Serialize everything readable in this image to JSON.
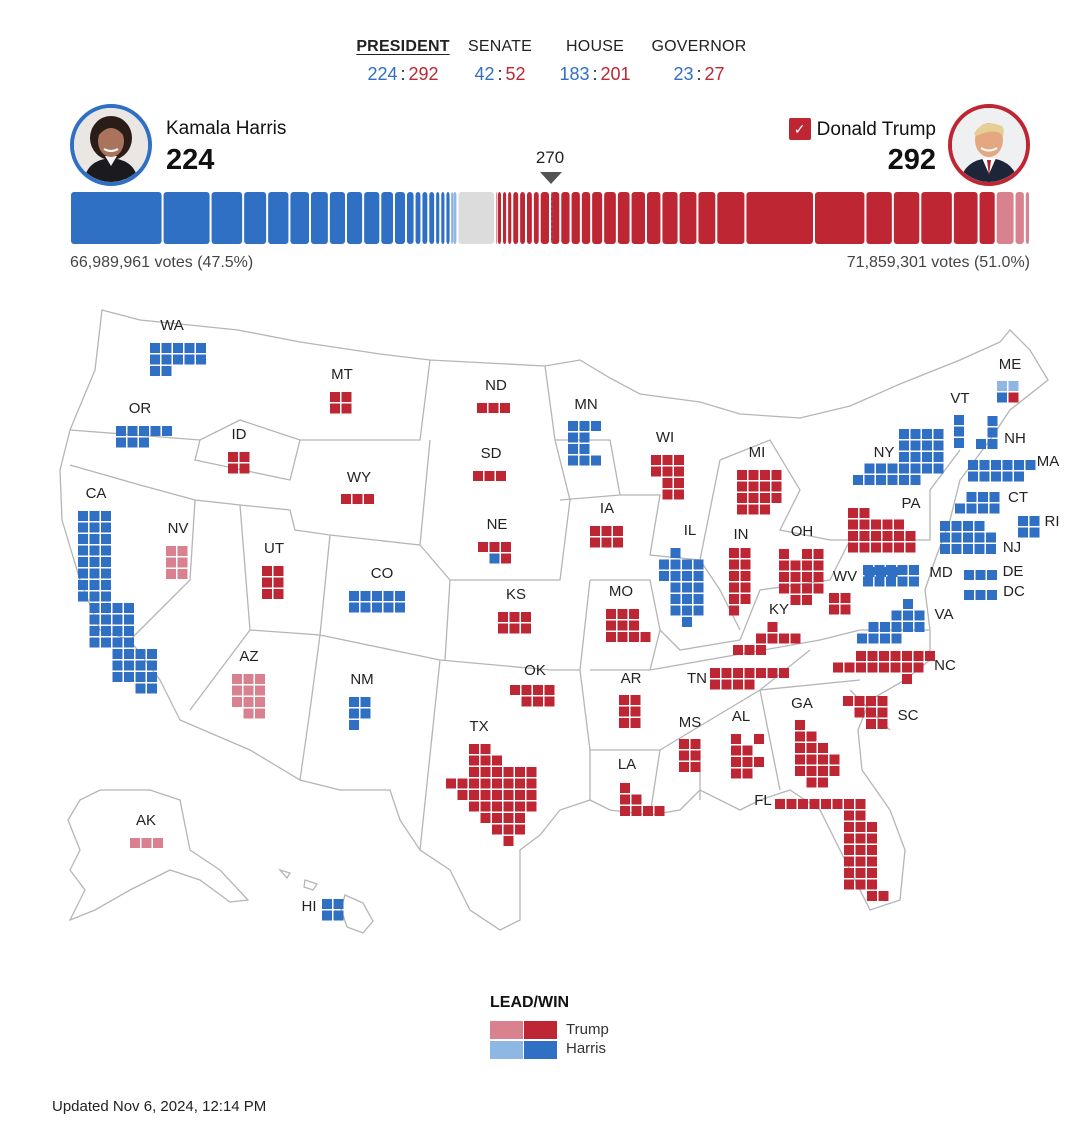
{
  "tabs": [
    {
      "label": "PRESIDENT",
      "dem": "224",
      "rep": "292",
      "active": true
    },
    {
      "label": "SENATE",
      "dem": "42",
      "rep": "52",
      "active": false
    },
    {
      "label": "HOUSE",
      "dem": "183",
      "rep": "201",
      "active": false
    },
    {
      "label": "GOVERNOR",
      "dem": "23",
      "rep": "27",
      "active": false
    }
  ],
  "candidates": {
    "dem": {
      "name": "Kamala Harris",
      "ev": "224",
      "votes": "66,989,961 votes (47.5%)",
      "color": "#2f6fc4"
    },
    "rep": {
      "name": "Donald Trump",
      "ev": "292",
      "votes": "71,859,301 votes (51.0%)",
      "color": "#bf2633",
      "check": "✓"
    }
  },
  "threshold": "270",
  "colors": {
    "trump_win": "#bf2633",
    "trump_lead": "#d9818f",
    "harris_win": "#2f6fc4",
    "harris_lead": "#8fb7e3",
    "uncalled": "#dcdcdc"
  },
  "legend": {
    "title": "LEAD/WIN",
    "trump": "Trump",
    "harris": "Harris"
  },
  "updated": "Updated Nov 6, 2024, 12:14 PM",
  "states": [
    {
      "abbr": "WA",
      "ev": 12,
      "winner": "D",
      "status": "win"
    },
    {
      "abbr": "OR",
      "ev": 8,
      "winner": "D",
      "status": "win"
    },
    {
      "abbr": "CA",
      "ev": 54,
      "winner": "D",
      "status": "win"
    },
    {
      "abbr": "NV",
      "ev": 6,
      "winner": "R",
      "status": "lead"
    },
    {
      "abbr": "ID",
      "ev": 4,
      "winner": "R",
      "status": "win"
    },
    {
      "abbr": "MT",
      "ev": 4,
      "winner": "R",
      "status": "win"
    },
    {
      "abbr": "WY",
      "ev": 3,
      "winner": "R",
      "status": "win"
    },
    {
      "abbr": "UT",
      "ev": 6,
      "winner": "R",
      "status": "win"
    },
    {
      "abbr": "AZ",
      "ev": 11,
      "winner": "R",
      "status": "lead"
    },
    {
      "abbr": "CO",
      "ev": 10,
      "winner": "D",
      "status": "win"
    },
    {
      "abbr": "NM",
      "ev": 5,
      "winner": "D",
      "status": "win"
    },
    {
      "abbr": "ND",
      "ev": 3,
      "winner": "R",
      "status": "win"
    },
    {
      "abbr": "SD",
      "ev": 3,
      "winner": "R",
      "status": "win"
    },
    {
      "abbr": "NE",
      "ev": 5,
      "winner": "R",
      "status": "win",
      "split": "4R-1D"
    },
    {
      "abbr": "KS",
      "ev": 6,
      "winner": "R",
      "status": "win"
    },
    {
      "abbr": "OK",
      "ev": 7,
      "winner": "R",
      "status": "win"
    },
    {
      "abbr": "TX",
      "ev": 40,
      "winner": "R",
      "status": "win"
    },
    {
      "abbr": "MN",
      "ev": 10,
      "winner": "D",
      "status": "win"
    },
    {
      "abbr": "IA",
      "ev": 6,
      "winner": "R",
      "status": "win"
    },
    {
      "abbr": "MO",
      "ev": 10,
      "winner": "R",
      "status": "win"
    },
    {
      "abbr": "AR",
      "ev": 6,
      "winner": "R",
      "status": "win"
    },
    {
      "abbr": "LA",
      "ev": 8,
      "winner": "R",
      "status": "win"
    },
    {
      "abbr": "WI",
      "ev": 10,
      "winner": "R",
      "status": "win"
    },
    {
      "abbr": "IL",
      "ev": 19,
      "winner": "D",
      "status": "win"
    },
    {
      "abbr": "MI",
      "ev": 15,
      "winner": "R",
      "status": "win"
    },
    {
      "abbr": "IN",
      "ev": 11,
      "winner": "R",
      "status": "win"
    },
    {
      "abbr": "OH",
      "ev": 17,
      "winner": "R",
      "status": "win"
    },
    {
      "abbr": "KY",
      "ev": 8,
      "winner": "R",
      "status": "win"
    },
    {
      "abbr": "TN",
      "ev": 11,
      "winner": "R",
      "status": "win"
    },
    {
      "abbr": "MS",
      "ev": 6,
      "winner": "R",
      "status": "win"
    },
    {
      "abbr": "AL",
      "ev": 9,
      "winner": "R",
      "status": "win"
    },
    {
      "abbr": "GA",
      "ev": 16,
      "winner": "R",
      "status": "win"
    },
    {
      "abbr": "FL",
      "ev": 30,
      "winner": "R",
      "status": "win"
    },
    {
      "abbr": "SC",
      "ev": 9,
      "winner": "R",
      "status": "win"
    },
    {
      "abbr": "NC",
      "ev": 16,
      "winner": "R",
      "status": "win"
    },
    {
      "abbr": "WV",
      "ev": 4,
      "winner": "R",
      "status": "win"
    },
    {
      "abbr": "VA",
      "ev": 13,
      "winner": "D",
      "status": "win"
    },
    {
      "abbr": "PA",
      "ev": 19,
      "winner": "R",
      "status": "win"
    },
    {
      "abbr": "NY",
      "ev": 28,
      "winner": "D",
      "status": "win"
    },
    {
      "abbr": "VT",
      "ev": 3,
      "winner": "D",
      "status": "win"
    },
    {
      "abbr": "NH",
      "ev": 4,
      "winner": "D",
      "status": "win"
    },
    {
      "abbr": "ME",
      "ev": 4,
      "winner": "D",
      "status": "lead",
      "split": "2D-lead,1D,1R"
    },
    {
      "abbr": "MA",
      "ev": 11,
      "winner": "D",
      "status": "win"
    },
    {
      "abbr": "CT",
      "ev": 7,
      "winner": "D",
      "status": "win"
    },
    {
      "abbr": "RI",
      "ev": 4,
      "winner": "D",
      "status": "win"
    },
    {
      "abbr": "NJ",
      "ev": 14,
      "winner": "D",
      "status": "win"
    },
    {
      "abbr": "DE",
      "ev": 3,
      "winner": "D",
      "status": "win"
    },
    {
      "abbr": "MD",
      "ev": 10,
      "winner": "D",
      "status": "win"
    },
    {
      "abbr": "DC",
      "ev": 3,
      "winner": "D",
      "status": "win"
    },
    {
      "abbr": "AK",
      "ev": 3,
      "winner": "R",
      "status": "lead"
    },
    {
      "abbr": "HI",
      "ev": 4,
      "winner": "D",
      "status": "win"
    }
  ]
}
